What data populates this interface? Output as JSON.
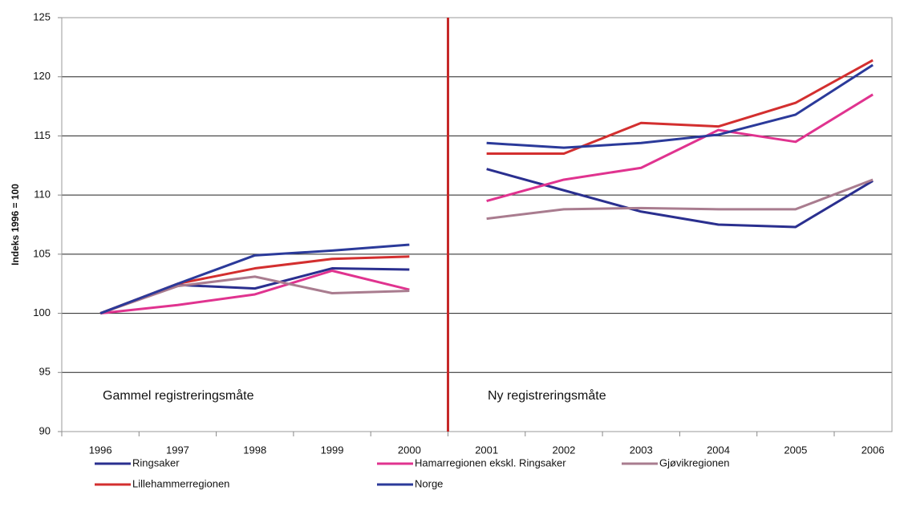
{
  "chart_data": {
    "type": "line",
    "y_label": "Indeks 1996 = 100",
    "annotations": [
      "Gammel registreringsmåte",
      "Ny registreringsmåte"
    ],
    "categories": [
      "1996",
      "1997",
      "1998",
      "1999",
      "2000",
      "2001",
      "2002",
      "2003",
      "2004",
      "2005",
      "2006"
    ],
    "series": [
      {
        "name": "Ringsaker",
        "color": "#2a2f8f",
        "values": [
          100,
          102.4,
          102.1,
          103.8,
          103.7,
          112.2,
          110.4,
          108.6,
          107.5,
          107.3,
          111.2
        ]
      },
      {
        "name": "Hamarregionen ekskl. Ringsaker",
        "color": "#e0338f",
        "values": [
          100,
          100.7,
          101.6,
          103.6,
          102.0,
          109.5,
          111.3,
          112.3,
          115.5,
          114.5,
          118.5
        ]
      },
      {
        "name": "Gjøvikregionen",
        "color": "#a97c8f",
        "values": [
          100,
          102.3,
          103.1,
          101.7,
          101.9,
          108.0,
          108.8,
          108.9,
          108.8,
          108.8,
          111.3
        ]
      },
      {
        "name": "Lillehammerregionen",
        "color": "#d32f2f",
        "values": [
          100,
          102.5,
          103.8,
          104.6,
          104.8,
          113.5,
          113.5,
          116.1,
          115.8,
          117.8,
          121.4
        ]
      },
      {
        "name": "Norge",
        "color": "#2b3a9a",
        "values": [
          100,
          102.5,
          104.9,
          105.3,
          105.8,
          114.4,
          114.0,
          114.4,
          115.1,
          116.8,
          121.0
        ]
      }
    ],
    "ylim": [
      90,
      125
    ],
    "yticks": [
      90,
      95,
      100,
      105,
      110,
      115,
      120,
      125
    ],
    "grid": true,
    "divider_after_index": 4,
    "divider_color": "#c62828",
    "legend": "bottom"
  }
}
